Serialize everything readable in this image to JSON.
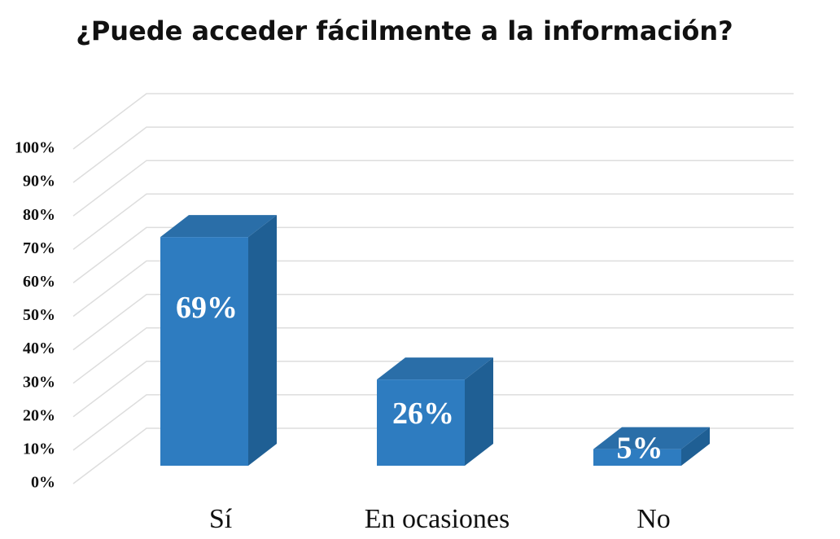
{
  "chart_data": {
    "type": "bar3d",
    "title": "¿Puede acceder fácilmente a la información?",
    "categories": [
      "Sí",
      "En ocasiones",
      "No"
    ],
    "values": [
      69,
      26,
      5
    ],
    "value_labels": [
      "69%",
      "26%",
      "5%"
    ],
    "color": "#2e7cc0",
    "ylim": [
      0,
      100
    ],
    "yticks": [
      {
        "value": 0,
        "label": "0%"
      },
      {
        "value": 10,
        "label": "10%"
      },
      {
        "value": 20,
        "label": "20%"
      },
      {
        "value": 30,
        "label": "30%"
      },
      {
        "value": 40,
        "label": "40%"
      },
      {
        "value": 50,
        "label": "50%"
      },
      {
        "value": 60,
        "label": "60%"
      },
      {
        "value": 70,
        "label": "70%"
      },
      {
        "value": 80,
        "label": "80%"
      },
      {
        "value": 90,
        "label": "90%"
      },
      {
        "value": 100,
        "label": "100%"
      }
    ],
    "grid": true
  }
}
